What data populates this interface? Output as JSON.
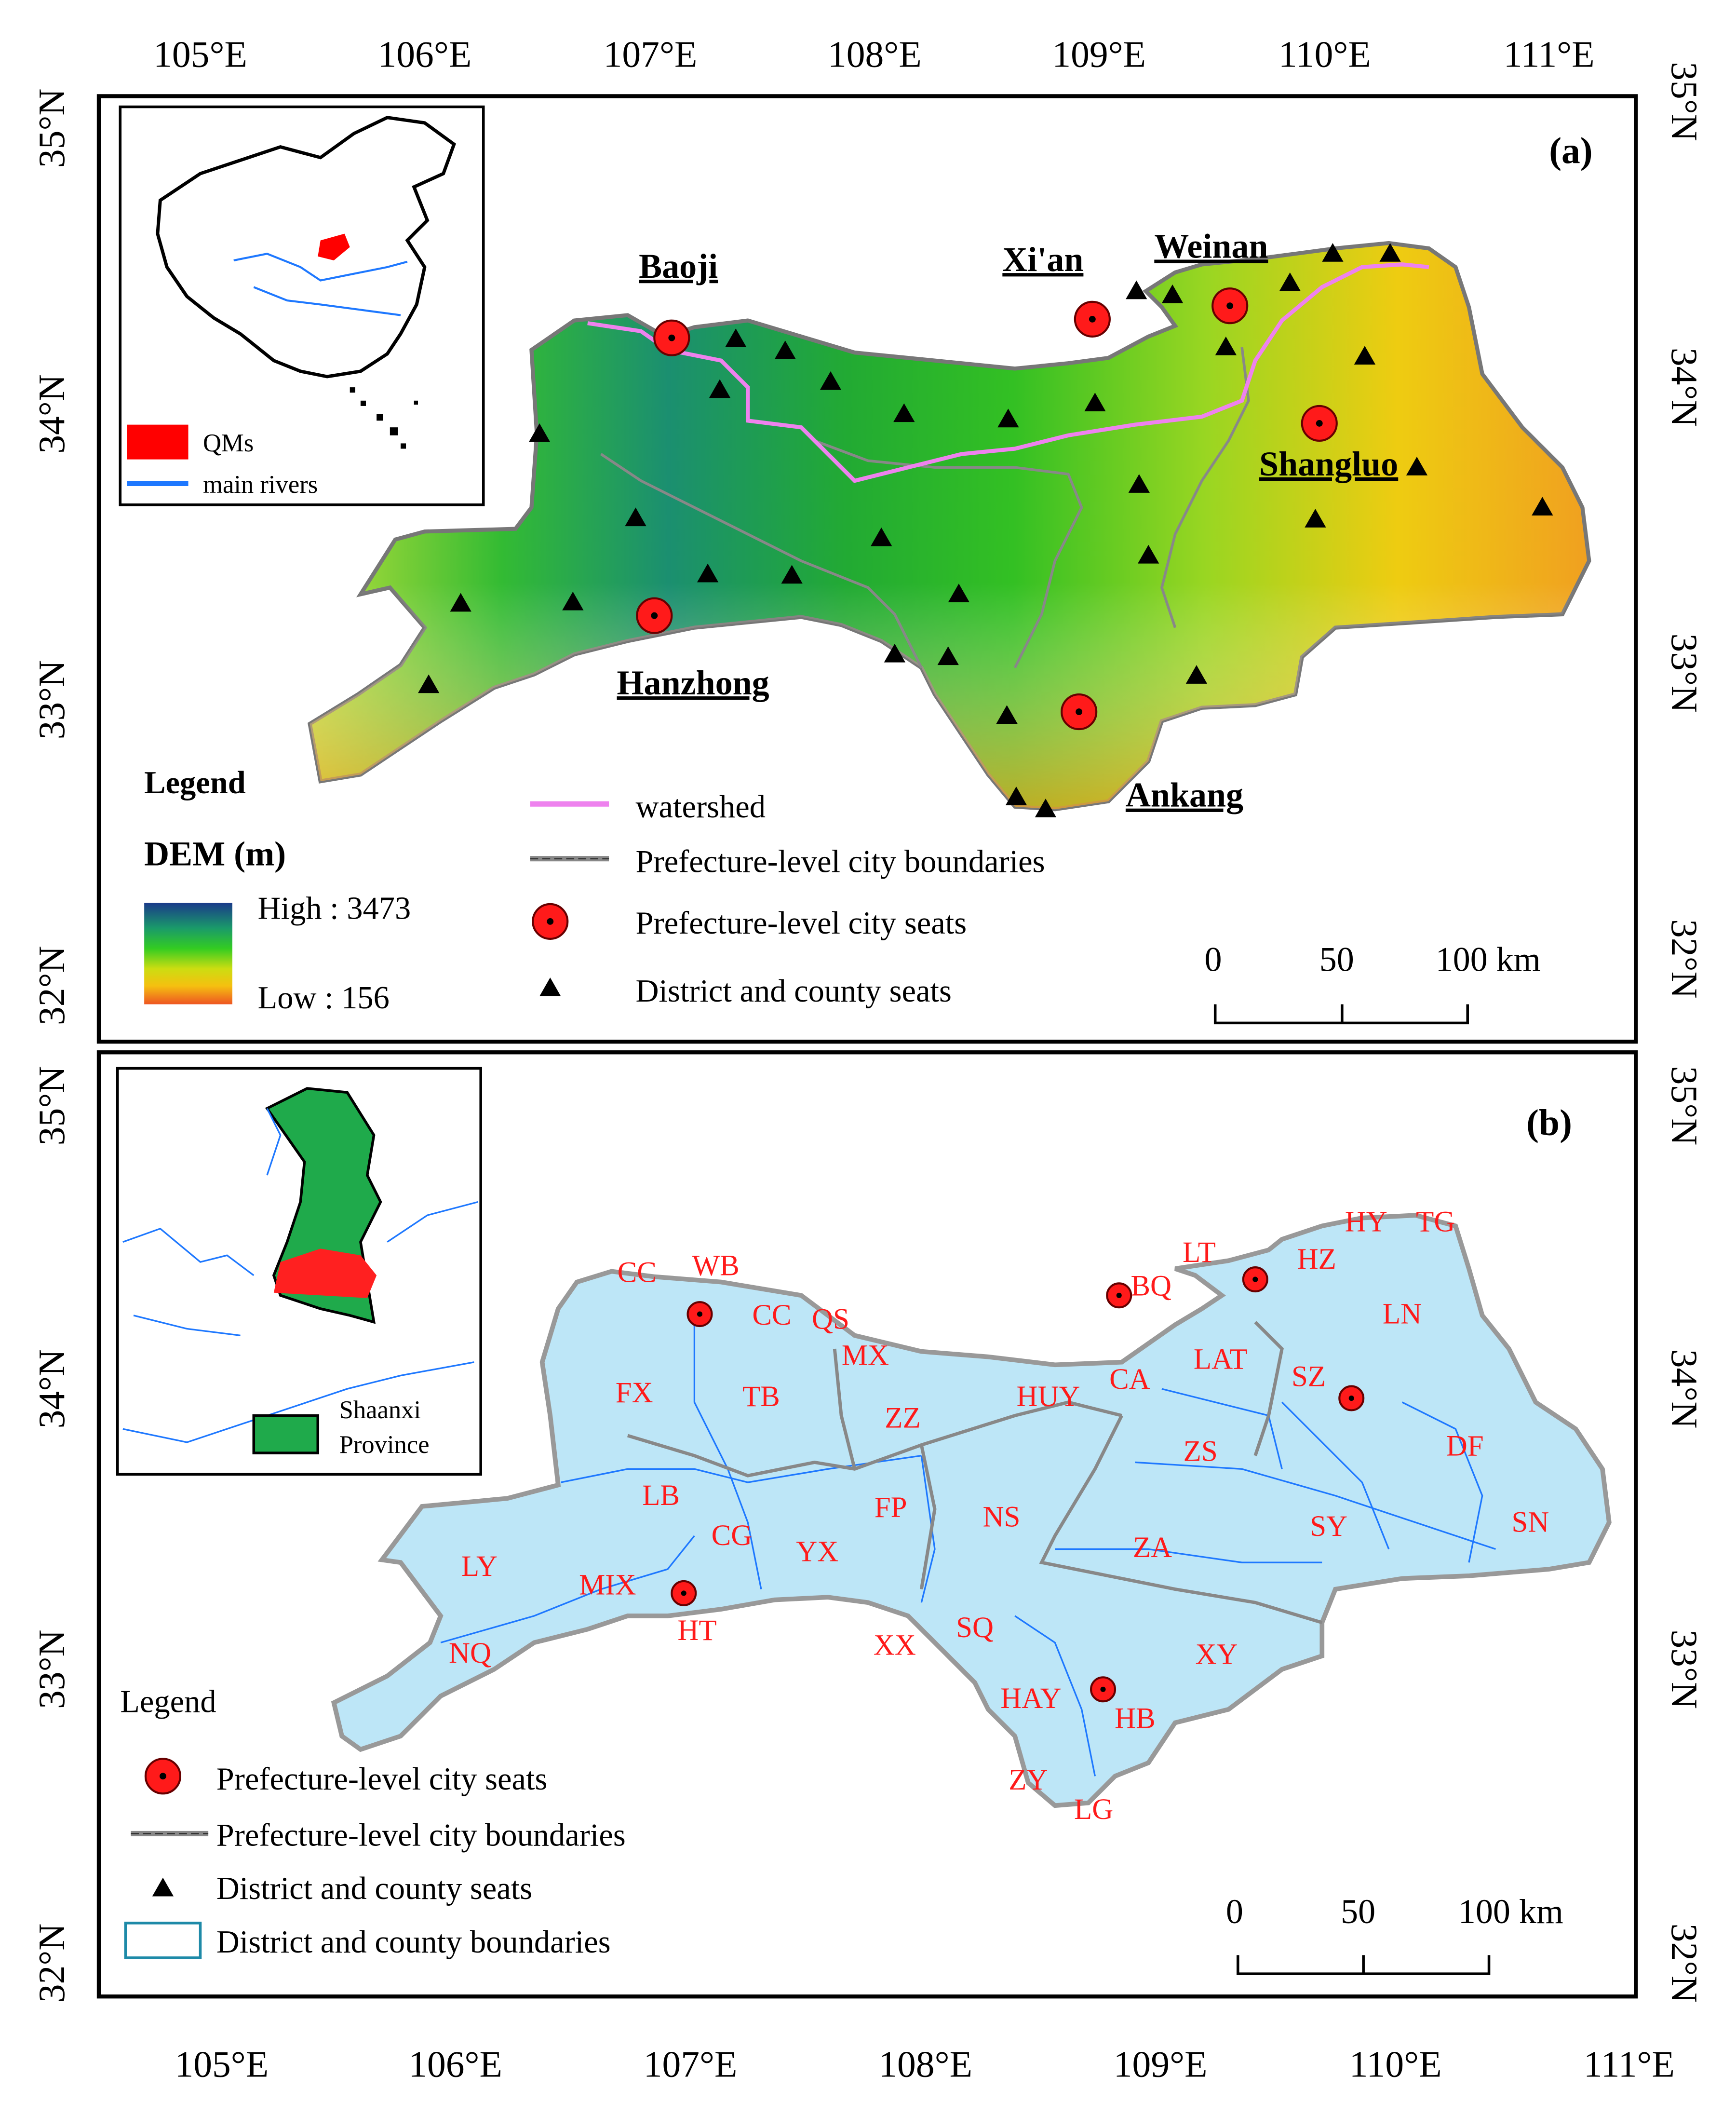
{
  "panel_a": {
    "label": "(a)",
    "lon_ticks": [
      "105°E",
      "106°E",
      "107°E",
      "108°E",
      "109°E",
      "110°E",
      "111°E"
    ],
    "lat_ticks": [
      "35°N",
      "34°N",
      "33°N",
      "32°N"
    ],
    "cities": [
      {
        "name": "Baoji",
        "lon": 107.14,
        "lat": 34.36
      },
      {
        "name": "Xi'an",
        "lon": 108.94,
        "lat": 34.34
      },
      {
        "name": "Weinan",
        "lon": 109.5,
        "lat": 34.5
      },
      {
        "name": "Shangluo",
        "lon": 109.94,
        "lat": 33.87
      },
      {
        "name": "Hanzhong",
        "lon": 107.03,
        "lat": 33.07
      },
      {
        "name": "Ankang",
        "lon": 109.03,
        "lat": 32.68
      }
    ],
    "legend": {
      "title": "Legend",
      "dem_title": "DEM (m)",
      "high": "High : 3473",
      "low": "Low : 156",
      "watershed": "watershed",
      "boundaries": "Prefecture-level city boundaries",
      "city_seats": "Prefecture-level city seats",
      "county_seats": "District and county seats"
    },
    "scale": {
      "zero": "0",
      "mid": "50",
      "end": "100 km"
    },
    "inset": {
      "qms": "QMs",
      "rivers": "main rivers"
    },
    "colors": {
      "watershed": "#ee82ee",
      "river": "#1e78ff",
      "qms": "#ff0000",
      "dem_high": "#1a3a8a",
      "dem_mid": "#22bb22",
      "dem_low": "#ee6622"
    }
  },
  "panel_b": {
    "label": "(b)",
    "lon_ticks": [
      "105°E",
      "106°E",
      "107°E",
      "108°E",
      "109°E",
      "110°E",
      "111°E"
    ],
    "lat_ticks": [
      "35°N",
      "34°N",
      "33°N",
      "32°N"
    ],
    "counties": [
      "CC",
      "WB",
      "CC",
      "QS",
      "MX",
      "FX",
      "TB",
      "ZZ",
      "HUY",
      "CA",
      "LT",
      "BQ",
      "HY",
      "TG",
      "HZ",
      "LAT",
      "SZ",
      "LN",
      "DF",
      "SN",
      "ZS",
      "SY",
      "ZA",
      "NS",
      "FP",
      "YX",
      "CG",
      "LB",
      "LY",
      "MIX",
      "HT",
      "NQ",
      "XX",
      "SQ",
      "HAY",
      "HB",
      "XY",
      "ZY",
      "LG"
    ],
    "legend": {
      "title": "Legend",
      "city_seats": "Prefecture-level city seats",
      "boundaries": "Prefecture-level city boundaries",
      "county_seats": "District and county seats",
      "county_boundaries": "District and county boundaries"
    },
    "scale": {
      "zero": "0",
      "mid": "50",
      "end": "100 km"
    },
    "inset": {
      "province": "Shaanxi",
      "province2": "Province"
    },
    "colors": {
      "fill": "#bde6f7",
      "shaanxi": "#1faa4b",
      "qms": "#ff2020",
      "county_line": "#1e78ff"
    }
  }
}
